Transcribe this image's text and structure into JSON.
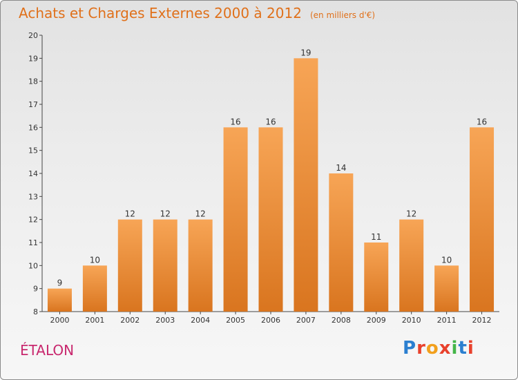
{
  "header": {
    "title": "Achats et Charges Externes 2000 à 2012",
    "unit": "(en milliers d'€)"
  },
  "footer": {
    "commune": "ÉTALON",
    "logo": "Proxiti"
  },
  "colors": {
    "bar_light": "#f7a556",
    "bar_dark": "#d9751f",
    "title": "#e0701a",
    "commune": "#c8286e"
  },
  "chart_data": {
    "type": "bar",
    "title": "Achats et Charges Externes 2000 à 2012",
    "subtitle": "(en milliers d'€)",
    "xlabel": "",
    "ylabel": "",
    "categories": [
      "2000",
      "2001",
      "2002",
      "2003",
      "2004",
      "2005",
      "2006",
      "2007",
      "2008",
      "2009",
      "2010",
      "2011",
      "2012"
    ],
    "values": [
      9,
      10,
      12,
      12,
      12,
      16,
      16,
      19,
      14,
      11,
      12,
      10,
      16
    ],
    "ylim": [
      8,
      20
    ],
    "yticks": [
      8,
      9,
      10,
      11,
      12,
      13,
      14,
      15,
      16,
      17,
      18,
      19,
      20
    ],
    "grid": false,
    "legend": "none"
  }
}
